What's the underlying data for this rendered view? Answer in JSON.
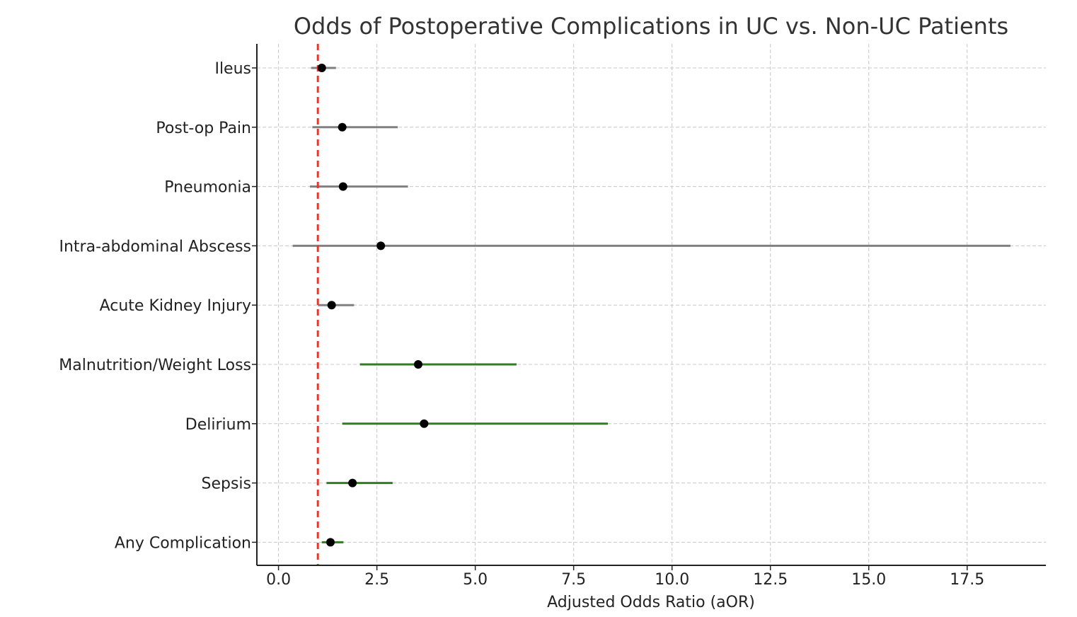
{
  "chart_data": {
    "type": "forest",
    "title": "Odds of Postoperative Complications in UC vs. Non-UC Patients",
    "xlabel": "Adjusted Odds Ratio (aOR)",
    "ylabel": "",
    "xlim": [
      -0.55,
      19.5
    ],
    "xticks": [
      0.0,
      2.5,
      5.0,
      7.5,
      10.0,
      12.5,
      15.0,
      17.5
    ],
    "xtick_labels": [
      "0.0",
      "2.5",
      "5.0",
      "7.5",
      "10.0",
      "12.5",
      "15.0",
      "17.5"
    ],
    "grid": true,
    "reference_line": {
      "x": 1.0,
      "color": "#e03a2e",
      "style": "dashed"
    },
    "marker_color": "#000000",
    "colors": {
      "significant": "#2e7d1f",
      "not_significant": "#808080"
    },
    "categories": [
      "Ileus",
      "Post-op Pain",
      "Pneumonia",
      "Intra-abdominal Abscess",
      "Acute Kidney Injury",
      "Malnutrition/Weight Loss",
      "Delirium",
      "Sepsis",
      "Any Complication"
    ],
    "aor": [
      1.1,
      1.62,
      1.64,
      2.6,
      1.35,
      3.55,
      3.7,
      1.88,
      1.32
    ],
    "ci_lower": [
      0.83,
      0.86,
      0.8,
      0.36,
      1.0,
      2.07,
      1.62,
      1.22,
      1.1
    ],
    "ci_upper": [
      1.46,
      3.03,
      3.29,
      18.6,
      1.92,
      6.05,
      8.37,
      2.9,
      1.65
    ],
    "significant": [
      false,
      false,
      false,
      false,
      false,
      true,
      true,
      true,
      true
    ]
  }
}
